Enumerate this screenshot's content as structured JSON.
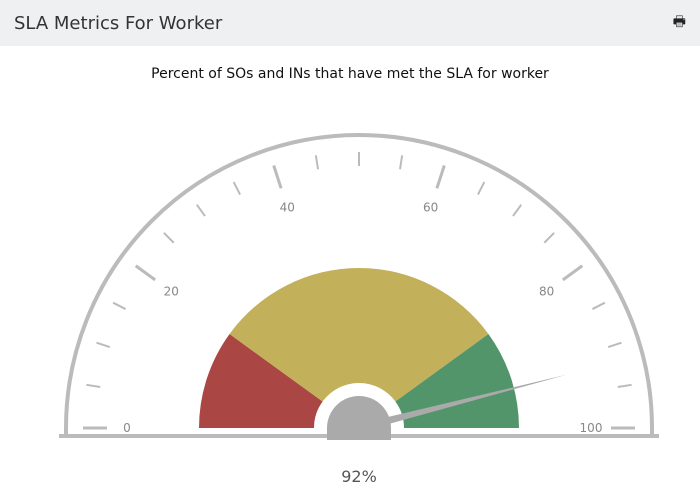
{
  "header": {
    "title": "SLA Metrics For Worker",
    "print_icon": "printer-icon"
  },
  "chart_data": {
    "type": "gauge",
    "title": "Percent of SOs and INs that have met the SLA for worker",
    "range": [
      0,
      100
    ],
    "tick_labels": [
      "0",
      "20",
      "40",
      "60",
      "80",
      "100"
    ],
    "major_tick_step": 20,
    "minor_tick_step": 5,
    "bands": [
      {
        "from": 0,
        "to": 20,
        "color": "#aa4643"
      },
      {
        "from": 20,
        "to": 80,
        "color": "#c3b05a"
      },
      {
        "from": 80,
        "to": 100,
        "color": "#52956a"
      }
    ],
    "value": 92,
    "value_label": "92%"
  }
}
